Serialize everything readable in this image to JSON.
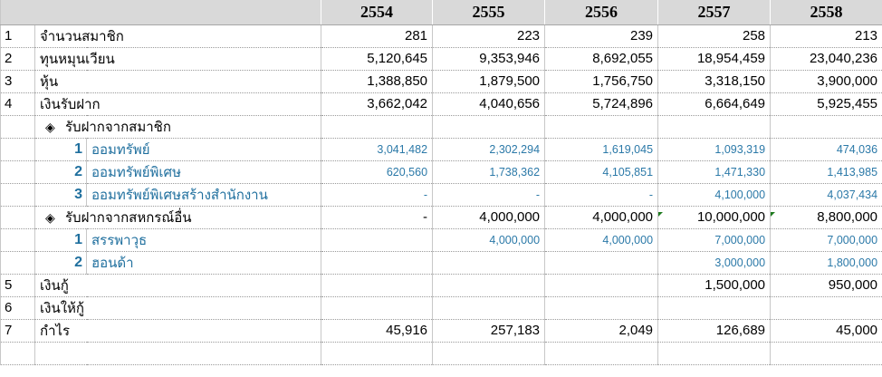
{
  "years": [
    "2554",
    "2555",
    "2556",
    "2557",
    "2558"
  ],
  "rows": [
    {
      "no": "1",
      "label": "จำนวนสมาชิก",
      "values": [
        "281",
        "223",
        "239",
        "258",
        "213"
      ]
    },
    {
      "no": "2",
      "label": "ทุนหมุนเวียน",
      "values": [
        "5,120,645",
        "9,353,946",
        "8,692,055",
        "18,954,459",
        "23,040,236"
      ]
    },
    {
      "no": "3",
      "label": "หุ้น",
      "values": [
        "1,388,850",
        "1,879,500",
        "1,756,750",
        "3,318,150",
        "3,900,000"
      ]
    },
    {
      "no": "4",
      "label": "เงินรับฝาก",
      "values": [
        "3,662,042",
        "4,040,656",
        "5,724,896",
        "6,664,649",
        "5,925,455"
      ]
    },
    {
      "no": "",
      "diamond": "◈",
      "label": "รับฝากจากสมาชิก",
      "values": [
        "",
        "",
        "",
        "",
        ""
      ]
    },
    {
      "sub_no": "1",
      "label": "ออมทรัพย์",
      "blue": true,
      "values": [
        "3,041,482",
        "2,302,294",
        "1,619,045",
        "1,093,319",
        "474,036"
      ]
    },
    {
      "sub_no": "2",
      "label": "ออมทรัพย์พิเศษ",
      "blue": true,
      "values": [
        "620,560",
        "1,738,362",
        "4,105,851",
        "1,471,330",
        "1,413,985"
      ]
    },
    {
      "sub_no": "3",
      "label": "ออมทรัพย์พิเศษสร้างสำนักงาน",
      "blue": true,
      "values": [
        "-",
        "-",
        "-",
        "4,100,000",
        "4,037,434"
      ]
    },
    {
      "no": "",
      "diamond": "◈",
      "label": "รับฝากจากสหกรณ์อื่น",
      "values": [
        "-",
        "4,000,000",
        "4,000,000",
        "10,000,000",
        "8,800,000"
      ]
    },
    {
      "sub_no": "1",
      "label": "สรรพาวุธ",
      "blue": true,
      "values": [
        "",
        "4,000,000",
        "4,000,000",
        "7,000,000",
        "7,000,000"
      ]
    },
    {
      "sub_no": "2",
      "label": "ฮอนด้า",
      "blue": true,
      "values": [
        "",
        "",
        "",
        "3,000,000",
        "1,800,000"
      ]
    },
    {
      "no": "5",
      "label": "เงินกู้",
      "values": [
        "",
        "",
        "",
        "1,500,000",
        "950,000"
      ]
    },
    {
      "no": "6",
      "label": "เงินให้กู้",
      "values": [
        "",
        "",
        "",
        "",
        ""
      ]
    },
    {
      "no": "7",
      "label": "กำไร",
      "values": [
        "45,916",
        "257,183",
        "2,049",
        "126,689",
        "45,000"
      ]
    },
    {
      "no": "",
      "label": "",
      "values": [
        "",
        "",
        "",
        "",
        ""
      ]
    }
  ],
  "colors": {
    "header_bg": "#d9d9d9",
    "sub_text": "#1f6f9e",
    "sub_number": "#2b79a8",
    "corner_marker": "#1e7a1e"
  }
}
